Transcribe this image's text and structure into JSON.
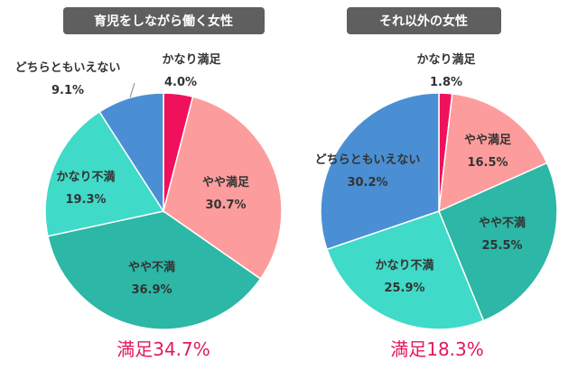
{
  "chart_data": [
    {
      "type": "pie",
      "title": "育児をしながら働く女性",
      "slices": [
        {
          "label": "かなり満足",
          "value": 4.0,
          "value_text": "4.0%",
          "color": "#f0115c"
        },
        {
          "label": "やや満足",
          "value": 30.7,
          "value_text": "30.7%",
          "color": "#fd9c9c"
        },
        {
          "label": "やや不満",
          "value": 36.9,
          "value_text": "36.9%",
          "color": "#2cb7a6"
        },
        {
          "label": "かなり不満",
          "value": 19.3,
          "value_text": "19.3%",
          "color": "#40dac8"
        },
        {
          "label": "どちらともいえない",
          "value": 9.1,
          "value_text": "9.1%",
          "color": "#4a8fd3"
        }
      ],
      "summary": "満足34.7%"
    },
    {
      "type": "pie",
      "title": "それ以外の女性",
      "slices": [
        {
          "label": "かなり満足",
          "value": 1.8,
          "value_text": "1.8%",
          "color": "#f0115c"
        },
        {
          "label": "やや満足",
          "value": 16.5,
          "value_text": "16.5%",
          "color": "#fd9c9c"
        },
        {
          "label": "やや不満",
          "value": 25.5,
          "value_text": "25.5%",
          "color": "#2cb7a6"
        },
        {
          "label": "かなり不満",
          "value": 25.9,
          "value_text": "25.9%",
          "color": "#40dac8"
        },
        {
          "label": "どちらともいえない",
          "value": 30.2,
          "value_text": "30.2%",
          "color": "#4a8fd3"
        }
      ],
      "summary": "満足18.3%"
    }
  ]
}
